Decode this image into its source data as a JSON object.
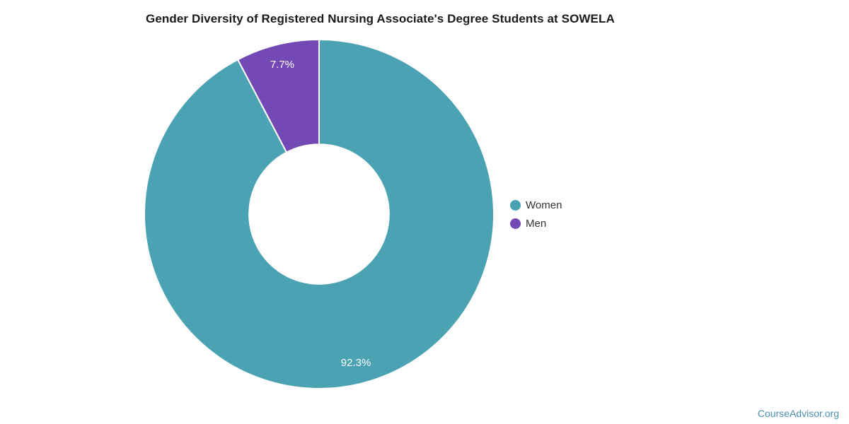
{
  "title": "Gender Diversity of Registered Nursing Associate's Degree Students at SOWELA",
  "source": {
    "label": "CourseAdvisor.org",
    "color": "#4a90ac"
  },
  "chart_data": {
    "type": "pie",
    "subtype": "donut",
    "title": "Gender Diversity of Registered Nursing Associate's Degree Students at SOWELA",
    "categories": [
      "Women",
      "Men"
    ],
    "values": [
      92.3,
      7.7
    ],
    "slice_labels": [
      "92.3%",
      "7.7%"
    ],
    "colors": [
      "#4aa2b2",
      "#7349b5"
    ],
    "start_angle_deg": 0,
    "direction": "clockwise",
    "inner_radius_ratio": 0.4,
    "label_radius_ratio": 0.88,
    "slice_border_color": "#ffffff",
    "slice_border_width": 2,
    "slice_label_color": "#ffffff",
    "legend_position": "right",
    "legend_text_color": "#333333"
  }
}
